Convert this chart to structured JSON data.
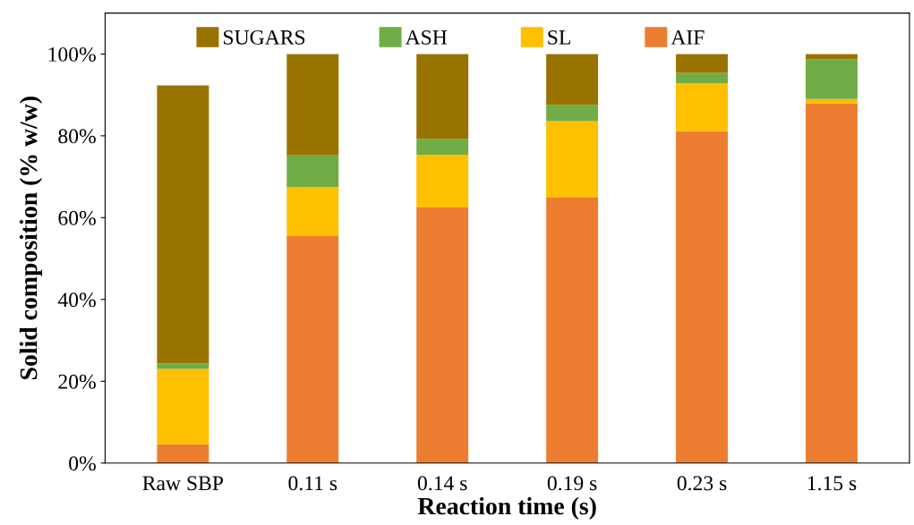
{
  "chart_data": {
    "type": "bar",
    "stacked": true,
    "xlabel": "Reaction time (s)",
    "ylabel": "Solid composition (% w/w)",
    "categories": [
      "Raw SBP",
      "0.11 s",
      "0.14 s",
      "0.19 s",
      "0.23 s",
      "1.15 s"
    ],
    "series": [
      {
        "name": "AIF",
        "color": "#ed7d31",
        "values": [
          4.6,
          55.5,
          62.5,
          64.9,
          81.1,
          87.9
        ]
      },
      {
        "name": "SL",
        "color": "#ffc000",
        "values": [
          18.4,
          12.0,
          12.9,
          18.7,
          11.7,
          1.1
        ]
      },
      {
        "name": "ASH",
        "color": "#70ad47",
        "values": [
          1.3,
          7.7,
          3.8,
          3.9,
          2.6,
          9.7
        ]
      },
      {
        "name": "SUGARS",
        "color": "#997300",
        "values": [
          68.0,
          24.8,
          20.8,
          12.5,
          4.6,
          1.3
        ]
      }
    ],
    "ylim": [
      0,
      110
    ],
    "yticks": [
      {
        "value": 0,
        "label": "0%"
      },
      {
        "value": 20,
        "label": "20%"
      },
      {
        "value": 40,
        "label": "40%"
      },
      {
        "value": 60,
        "label": "60%"
      },
      {
        "value": 80,
        "label": "80%"
      },
      {
        "value": 100,
        "label": "100%"
      }
    ],
    "grid": false,
    "legend": "top"
  }
}
